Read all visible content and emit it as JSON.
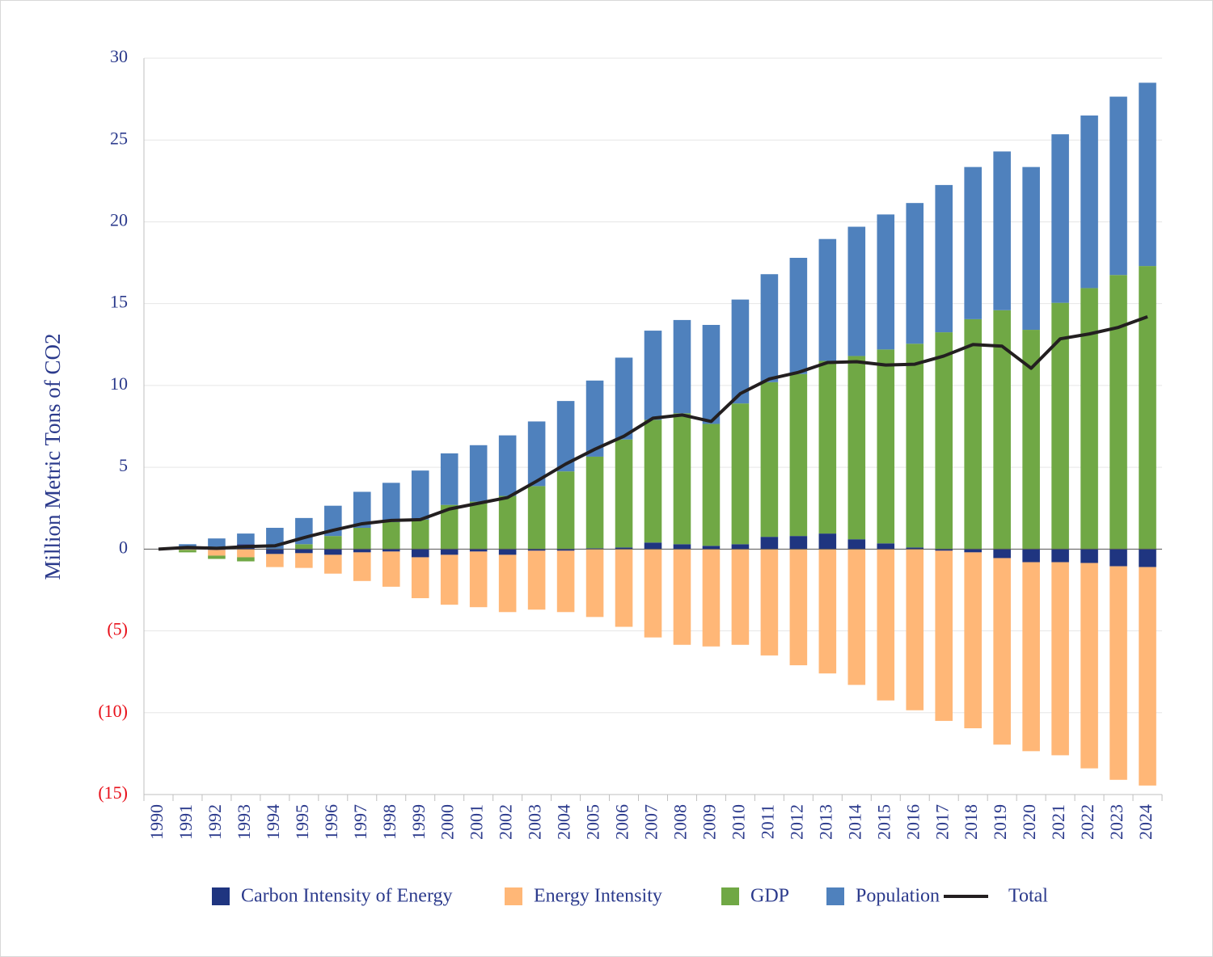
{
  "chart_data": {
    "type": "stacked_bar_line",
    "y_label": "Million Metric Tons of CO2",
    "categories": [
      "1990",
      "1991",
      "1992",
      "1993",
      "1994",
      "1995",
      "1996",
      "1997",
      "1998",
      "1999",
      "2000",
      "2001",
      "2002",
      "2003",
      "2004",
      "2005",
      "2006",
      "2007",
      "2008",
      "2009",
      "2010",
      "2011",
      "2012",
      "2013",
      "2014",
      "2015",
      "2016",
      "2017",
      "2018",
      "2019",
      "2020",
      "2021",
      "2022",
      "2023",
      "2024"
    ],
    "series": [
      {
        "name": "Carbon Intensity of Energy",
        "color": "#1f3580",
        "type": "bar",
        "values": [
          0,
          0,
          -0.05,
          0.3,
          -0.3,
          -0.25,
          -0.35,
          -0.2,
          -0.15,
          -0.5,
          -0.35,
          -0.15,
          -0.35,
          -0.1,
          -0.1,
          0.05,
          0.1,
          0.4,
          0.3,
          0.2,
          0.3,
          0.75,
          0.8,
          0.95,
          0.6,
          0.35,
          0.1,
          -0.1,
          -0.2,
          -0.55,
          -0.8,
          -0.8,
          -0.85,
          -1.05,
          -1.1
        ]
      },
      {
        "name": "Energy Intensity",
        "color": "#ffb777",
        "type": "bar",
        "values": [
          0,
          -0.05,
          -0.35,
          -0.5,
          -0.8,
          -0.9,
          -1.15,
          -1.75,
          -2.15,
          -2.5,
          -3.05,
          -3.4,
          -3.5,
          -3.6,
          -3.75,
          -4.15,
          -4.75,
          -5.4,
          -5.85,
          -5.95,
          -5.85,
          -6.5,
          -7.1,
          -7.6,
          -8.3,
          -9.25,
          -9.85,
          -10.4,
          -10.75,
          -11.4,
          -11.55,
          -11.8,
          -12.55,
          -13.05,
          -13.35
        ]
      },
      {
        "name": "GDP",
        "color": "#70a845",
        "type": "bar",
        "values": [
          0,
          -0.15,
          -0.2,
          -0.25,
          0,
          0.3,
          0.8,
          1.3,
          1.65,
          1.8,
          2.7,
          2.9,
          3.25,
          3.85,
          4.75,
          5.6,
          6.6,
          7.5,
          8.0,
          7.45,
          8.6,
          9.45,
          9.9,
          10.55,
          11.2,
          11.85,
          12.45,
          13.25,
          14.05,
          14.6,
          13.4,
          15.05,
          15.95,
          16.75,
          17.3
        ]
      },
      {
        "name": "Population",
        "color": "#4f81bd",
        "type": "bar",
        "values": [
          0,
          0.3,
          0.65,
          0.65,
          1.3,
          1.6,
          1.85,
          2.2,
          2.4,
          3.0,
          3.15,
          3.45,
          3.7,
          3.95,
          4.3,
          4.65,
          5.0,
          5.45,
          5.7,
          6.05,
          6.35,
          6.6,
          7.1,
          7.45,
          7.9,
          8.25,
          8.6,
          9.0,
          9.3,
          9.7,
          9.95,
          10.3,
          10.55,
          10.9,
          11.2
        ]
      },
      {
        "name": "Total",
        "color": "#231f20",
        "type": "line",
        "values": [
          0,
          0.1,
          0.05,
          0.15,
          0.2,
          0.7,
          1.15,
          1.55,
          1.75,
          1.8,
          2.45,
          2.8,
          3.15,
          4.15,
          5.2,
          6.1,
          6.9,
          8.0,
          8.2,
          7.8,
          9.5,
          10.4,
          10.8,
          11.4,
          11.45,
          11.25,
          11.3,
          11.8,
          12.5,
          12.4,
          11.05,
          12.85,
          13.15,
          13.55,
          14.2
        ]
      }
    ],
    "ylim": [
      -15,
      30
    ],
    "yticks": [
      {
        "value": -15,
        "label": "(15)"
      },
      {
        "value": -10,
        "label": "(10)"
      },
      {
        "value": -5,
        "label": "(5)"
      },
      0,
      5,
      10,
      15,
      20,
      25,
      30
    ],
    "negative_tick_color": "#e8101a",
    "grid": true,
    "legend": "bottom"
  }
}
